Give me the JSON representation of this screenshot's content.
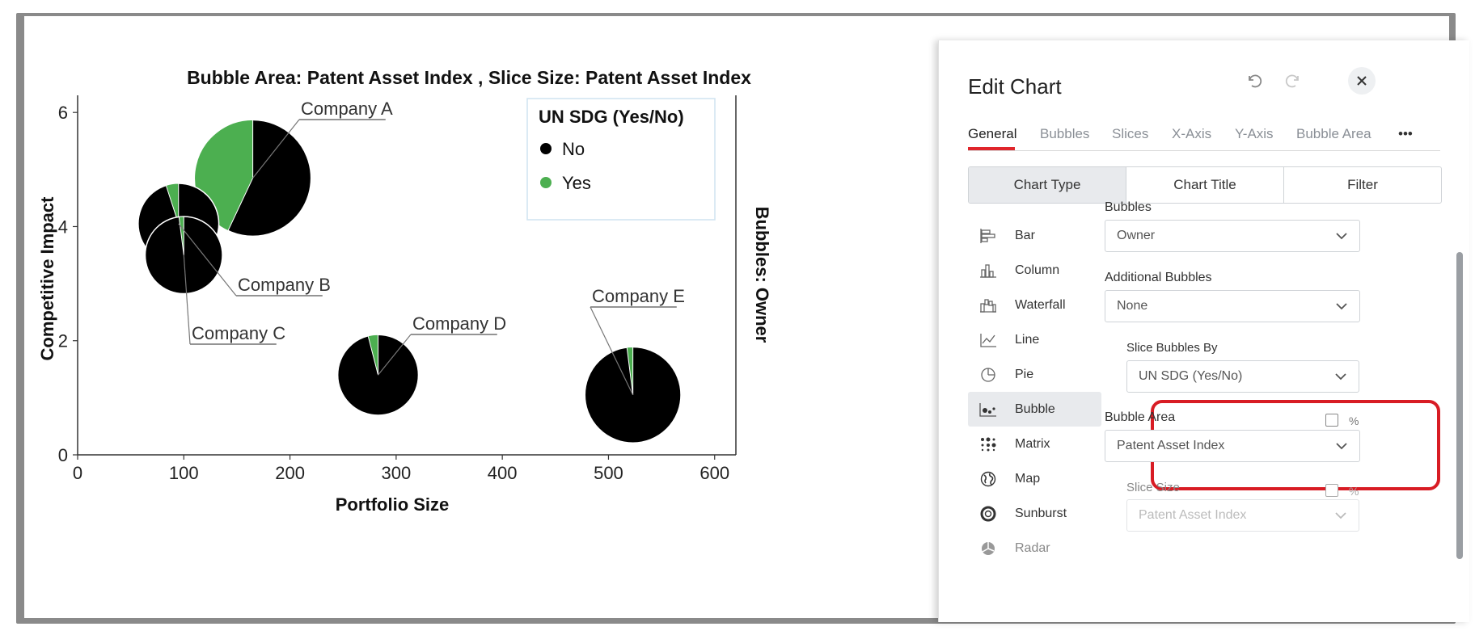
{
  "chart_data": {
    "type": "bubble",
    "title": "Bubble Area: Patent Asset Index , Slice Size: Patent Asset Index",
    "xlabel": "Portfolio Size",
    "ylabel": "Competitive Impact",
    "right_label": "Bubbles: Owner",
    "xlim": [
      0,
      620
    ],
    "ylim": [
      0,
      6.3
    ],
    "xticks": [
      0,
      100,
      200,
      300,
      400,
      500,
      600
    ],
    "yticks": [
      0,
      2,
      4,
      6
    ],
    "legend": {
      "title": "UN SDG (Yes/No)",
      "placement": "top-right",
      "items": [
        {
          "label": "No",
          "color": "#000000"
        },
        {
          "label": "Yes",
          "color": "#4caf50"
        }
      ]
    },
    "bubbles": [
      {
        "name": "Company A",
        "x": 165,
        "y": 4.85,
        "area": 100,
        "yes_share": 0.43
      },
      {
        "name": "Company B",
        "x": 95,
        "y": 4.05,
        "area": 48,
        "yes_share": 0.05
      },
      {
        "name": "Company C",
        "x": 100,
        "y": 3.5,
        "area": 44,
        "yes_share": 0.02
      },
      {
        "name": "Company D",
        "x": 283,
        "y": 1.4,
        "area": 48,
        "yes_share": 0.04
      },
      {
        "name": "Company E",
        "x": 523,
        "y": 1.05,
        "area": 68,
        "yes_share": 0.02
      }
    ]
  },
  "panel": {
    "title": "Edit Chart",
    "tabs": [
      "General",
      "Bubbles",
      "Slices",
      "X-Axis",
      "Y-Axis",
      "Bubble Area",
      "•••"
    ],
    "segments": [
      "Chart Type",
      "Chart Title",
      "Filter"
    ],
    "chart_types": [
      "Bar",
      "Column",
      "Waterfall",
      "Line",
      "Pie",
      "Bubble",
      "Matrix",
      "Map",
      "Sunburst",
      "Radar"
    ],
    "bubbles_label": "Bubbles",
    "bubbles_value": "Owner",
    "additional_label": "Additional Bubbles",
    "additional_value": "None",
    "slice_by_label": "Slice Bubbles By",
    "slice_by_value": "UN SDG (Yes/No)",
    "area_label": "Bubble Area",
    "area_value": "Patent Asset Index",
    "pct": "%",
    "slice_size_label": "Slice Size",
    "slice_size_value": "Patent Asset Index"
  },
  "colors": {
    "accent": "#e0252b",
    "highlight": "#d81c24",
    "yes": "#4caf50",
    "no": "#000000"
  }
}
